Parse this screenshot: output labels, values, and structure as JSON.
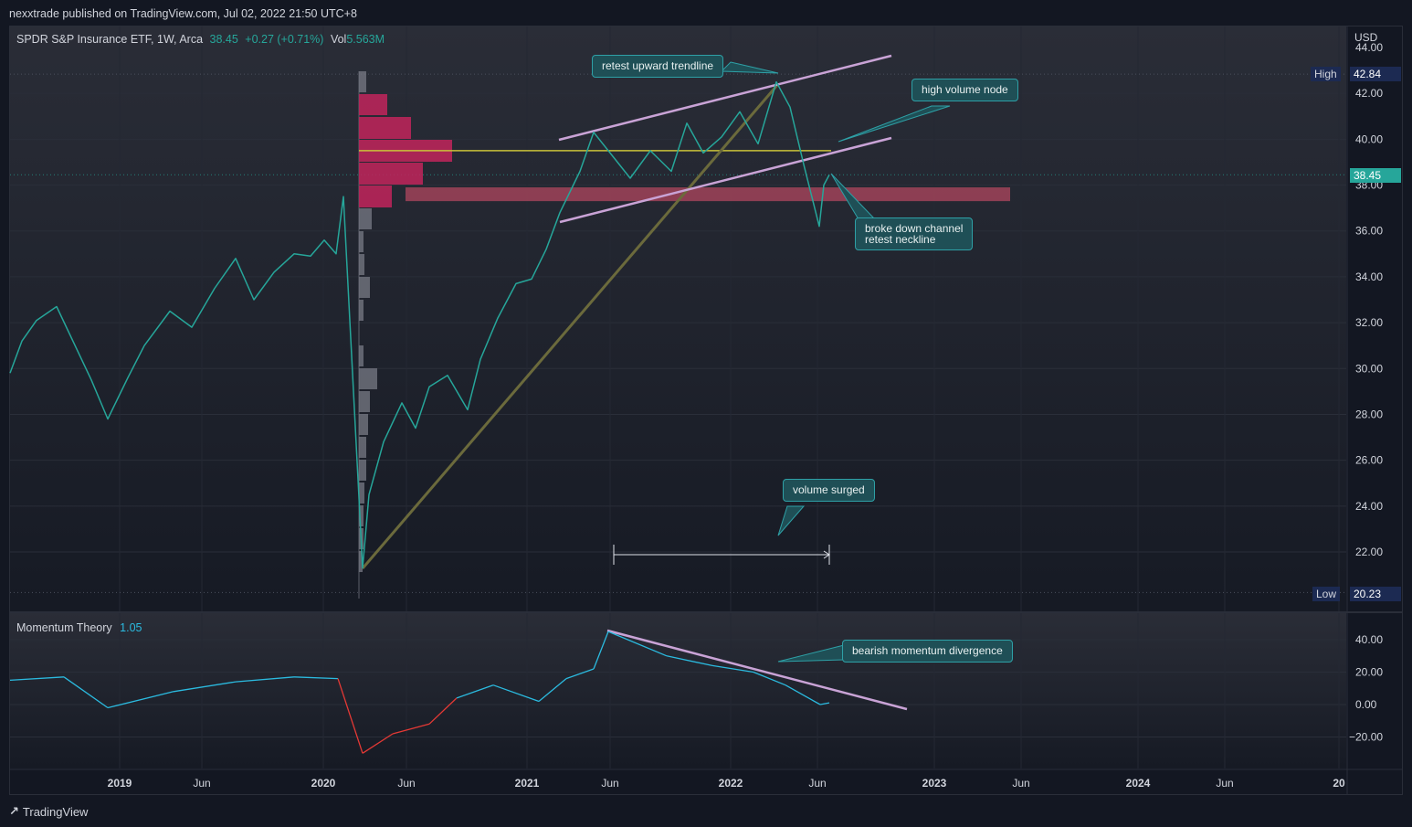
{
  "header": {
    "publisher": "nexxtrade published on TradingView.com, Jul 02, 2022 21:50 UTC+8"
  },
  "legend": {
    "symbol": "SPDR S&P Insurance ETF, 1W, Arca",
    "price": "38.45",
    "change": "+0.27 (+0.71%)",
    "vol_label": "Vol",
    "vol_value": "5.563M"
  },
  "indicator": {
    "name": "Momentum Theory",
    "value": "1.05"
  },
  "price_axis": {
    "currency": "USD",
    "high_label": "High",
    "high_value": "42.84",
    "low_label": "Low",
    "low_value": "20.23",
    "last_value": "38.45",
    "ticks": [
      "44.00",
      "42.00",
      "40.00",
      "38.00",
      "36.00",
      "34.00",
      "32.00",
      "30.00",
      "28.00",
      "26.00",
      "24.00",
      "22.00"
    ]
  },
  "momentum_axis": {
    "ticks": [
      "40.00",
      "20.00",
      "0.00",
      "−20.00"
    ]
  },
  "time_axis": {
    "ticks": [
      "2019",
      "Jun",
      "2020",
      "Jun",
      "2021",
      "Jun",
      "2022",
      "Jun",
      "2023",
      "Jun",
      "2024",
      "Jun",
      "20"
    ]
  },
  "annotations": {
    "retest_trendline": "retest upward trendline",
    "high_volume_node": "high volume node",
    "broke_down": "broke down channel\nretest neckline",
    "volume_surged": "volume surged",
    "bearish_divergence": "bearish momentum divergence"
  },
  "footer": {
    "brand": "TradingView"
  },
  "colors": {
    "background": "#131722",
    "price_line": "#26a69a",
    "momentum_up": "#2bbbe0",
    "momentum_down": "#e53935",
    "channel": "#c9a3d6",
    "trendline": "#6b6a3c",
    "volume_profile": "#c2255c",
    "hv_zone": "#b0475f",
    "poc_line": "#c9c23a"
  },
  "chart_data": [
    {
      "type": "line",
      "title": "SPDR S&P Insurance ETF, 1W, Arca",
      "ylabel": "USD",
      "ylim": [
        20,
        44.5
      ],
      "x": [
        "2018-08",
        "2018-09",
        "2018-10",
        "2018-11",
        "2018-12",
        "2019-01",
        "2019-02",
        "2019-03",
        "2019-04",
        "2019-05",
        "2019-06",
        "2019-07",
        "2019-08",
        "2019-09",
        "2019-10",
        "2019-11",
        "2019-12",
        "2020-01",
        "2020-02",
        "2020-03a",
        "2020-03b",
        "2020-04",
        "2020-05",
        "2020-06",
        "2020-07",
        "2020-08",
        "2020-09",
        "2020-10",
        "2020-11",
        "2020-12",
        "2021-01",
        "2021-02",
        "2021-03",
        "2021-04",
        "2021-05",
        "2021-06",
        "2021-07",
        "2021-08",
        "2021-09",
        "2021-10",
        "2021-11",
        "2021-12",
        "2022-01",
        "2022-02",
        "2022-03",
        "2022-04",
        "2022-05",
        "2022-06a",
        "2022-06b",
        "2022-07"
      ],
      "values": [
        29.8,
        31.2,
        32.1,
        32.7,
        29.5,
        27.8,
        29.6,
        31.0,
        32.5,
        31.8,
        33.5,
        34.8,
        33.0,
        34.2,
        35.0,
        34.9,
        35.6,
        35.0,
        37.5,
        21.3,
        24.5,
        26.8,
        28.5,
        27.4,
        29.2,
        29.7,
        28.2,
        30.4,
        32.2,
        33.7,
        33.9,
        35.2,
        36.8,
        38.6,
        40.3,
        39.2,
        38.3,
        39.5,
        38.6,
        40.7,
        39.4,
        40.1,
        41.2,
        39.8,
        42.5,
        41.4,
        38.9,
        36.2,
        38.0,
        38.45
      ],
      "annotations": {
        "high": 42.84,
        "low": 20.23,
        "last": 38.45,
        "poc": 39.5,
        "hv_zone": [
          37.3,
          37.9
        ]
      }
    },
    {
      "type": "line",
      "title": "Momentum Theory",
      "ylim": [
        -30,
        50
      ],
      "x": [
        "2018-08",
        "2018-11",
        "2019-01",
        "2019-04",
        "2019-07",
        "2019-10",
        "2020-01",
        "2020-03",
        "2020-05",
        "2020-07",
        "2020-09",
        "2020-11",
        "2021-01",
        "2021-03",
        "2021-05",
        "2021-06",
        "2021-09",
        "2021-12",
        "2022-02",
        "2022-04",
        "2022-06",
        "2022-07"
      ],
      "values": [
        15,
        17,
        -2,
        8,
        14,
        17,
        16,
        -30,
        -18,
        -12,
        4,
        12,
        2,
        16,
        22,
        45,
        30,
        24,
        20,
        12,
        0,
        1.05
      ]
    }
  ]
}
